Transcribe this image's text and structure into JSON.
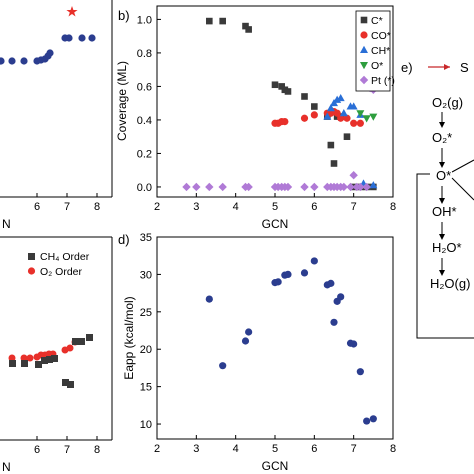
{
  "colors": {
    "navy": "#2b3d8f",
    "gray": "#3a3a3a",
    "red": "#e8302a",
    "blue": "#2a6fd6",
    "green": "#2e9e3e",
    "purple": "#b07ad6",
    "arrow_red": "#c8282a"
  },
  "panel_b": {
    "label": "b)"
  },
  "panel_d": {
    "label": "d)"
  },
  "panel_e": {
    "label": "e)",
    "legend_text": "S",
    "steps": [
      "O₂(g)",
      "O₂*",
      "O*",
      "OH*",
      "H₂O*",
      "H₂O(g)"
    ]
  },
  "panel_a_partial": {
    "xlabel_fragment": "N",
    "xticks": [
      "6",
      "7",
      "8"
    ]
  },
  "panel_c_partial": {
    "xlabel_fragment": "N",
    "xticks": [
      "6",
      "7",
      "8"
    ],
    "legend": [
      "CH₄ Order",
      "O₂ Order"
    ]
  },
  "chart_data": [
    {
      "id": "b",
      "type": "scatter",
      "xlabel": "GCN",
      "ylabel": "Coverage (ML)",
      "xlim": [
        2,
        8
      ],
      "ylim": [
        -0.06,
        1.08
      ],
      "xticks": [
        2,
        3,
        4,
        5,
        6,
        7,
        8
      ],
      "yticks": [
        0.0,
        0.2,
        0.4,
        0.6,
        0.8,
        1.0
      ],
      "legend_position": "top-right",
      "series": [
        {
          "name": "C*",
          "marker": "square",
          "color": "#3a3a3a",
          "x": [
            3.33,
            3.67,
            4.25,
            4.33,
            5.0,
            5.17,
            5.25,
            5.33,
            5.75,
            6.0,
            6.33,
            6.42,
            6.5,
            6.58,
            6.67,
            6.83,
            7.0,
            7.17,
            7.33,
            7.5
          ],
          "y": [
            0.99,
            0.99,
            0.96,
            0.94,
            0.61,
            0.6,
            0.58,
            0.57,
            0.54,
            0.48,
            0.42,
            0.25,
            0.14,
            0.42,
            0.42,
            0.3,
            0.0,
            0.0,
            0.0,
            0.0
          ]
        },
        {
          "name": "CO*",
          "marker": "circle",
          "color": "#e8302a",
          "x": [
            5.0,
            5.08,
            5.17,
            5.25,
            5.75,
            6.0,
            6.33,
            6.42,
            6.5,
            6.58,
            6.67,
            6.83,
            7.0,
            7.17
          ],
          "y": [
            0.38,
            0.38,
            0.39,
            0.39,
            0.41,
            0.43,
            0.44,
            0.44,
            0.45,
            0.44,
            0.41,
            0.41,
            0.38,
            0.38
          ]
        },
        {
          "name": "CH*",
          "marker": "triangle",
          "color": "#2a6fd6",
          "x": [
            6.33,
            6.42,
            6.5,
            6.58,
            6.67,
            6.75,
            6.92,
            7.0,
            7.17,
            7.25,
            7.5
          ],
          "y": [
            0.42,
            0.47,
            0.5,
            0.52,
            0.53,
            0.44,
            0.48,
            0.48,
            0.43,
            0.02,
            0.01
          ]
        },
        {
          "name": "O*",
          "marker": "triangle-down",
          "color": "#2e9e3e",
          "x": [
            7.17,
            7.33,
            7.5
          ],
          "y": [
            0.44,
            0.41,
            0.42
          ]
        },
        {
          "name": "Pt (*)",
          "marker": "diamond",
          "color": "#b07ad6",
          "x": [
            2.75,
            3.0,
            3.33,
            3.67,
            4.25,
            4.33,
            5.0,
            5.08,
            5.17,
            5.25,
            5.33,
            5.75,
            6.0,
            6.33,
            6.42,
            6.5,
            6.58,
            6.67,
            6.75,
            6.92,
            7.0,
            7.08,
            7.17,
            7.33,
            7.42,
            7.5
          ],
          "y": [
            0.0,
            0.0,
            0.0,
            0.0,
            0.0,
            0.0,
            0.0,
            0.0,
            0.0,
            0.0,
            0.0,
            0.0,
            0.0,
            0.0,
            0.0,
            0.0,
            0.0,
            0.0,
            0.0,
            0.0,
            0.07,
            0.0,
            0.0,
            0.0,
            0.59,
            0.58
          ]
        }
      ]
    },
    {
      "id": "d",
      "type": "scatter",
      "xlabel": "GCN",
      "ylabel": "Eapp (kcal/mol)",
      "xlim": [
        2,
        8
      ],
      "ylim": [
        8,
        35
      ],
      "xticks": [
        2,
        3,
        4,
        5,
        6,
        7,
        8
      ],
      "yticks": [
        10,
        15,
        20,
        25,
        30,
        35
      ],
      "series": [
        {
          "marker": "circle",
          "color": "#2b3d8f",
          "x": [
            3.33,
            3.67,
            4.25,
            4.33,
            5.0,
            5.08,
            5.25,
            5.33,
            5.75,
            6.0,
            6.33,
            6.42,
            6.5,
            6.58,
            6.67,
            6.92,
            7.0,
            7.17,
            7.33,
            7.5
          ],
          "y": [
            26.7,
            17.8,
            21.1,
            22.3,
            28.9,
            29.0,
            29.9,
            30.0,
            30.2,
            31.8,
            28.6,
            28.8,
            23.6,
            26.4,
            27.0,
            20.8,
            20.7,
            17.0,
            10.4,
            10.7
          ]
        }
      ]
    }
  ]
}
